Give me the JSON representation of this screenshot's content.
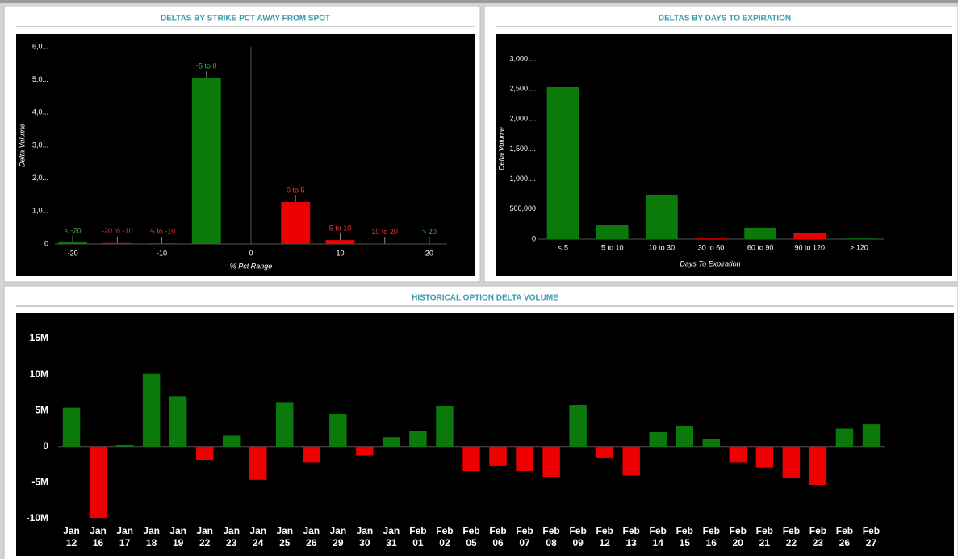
{
  "chart_data": [
    {
      "type": "bar",
      "title": "DELTAS BY STRIKE PCT AWAY FROM SPOT",
      "x_label": "% Pct Range",
      "y_label": "Delta Volume",
      "categories": [
        "< -20",
        "-20 to -10",
        "-5 to -10",
        "-5 to 0",
        "0 to 5",
        "5 to 10",
        "10 to 20",
        "> 20"
      ],
      "x": [
        -20,
        -15,
        -10,
        -5,
        5,
        10,
        15,
        20
      ],
      "values": [
        50000,
        30000,
        20000,
        5060000,
        1280000,
        120000,
        10000,
        5000
      ],
      "colors": [
        "#0b7a0b",
        "#ee0000",
        "#ee0000",
        "#0b7a0b",
        "#ee0000",
        "#ee0000",
        "#ee0000",
        "#0b7a0b"
      ],
      "xlim": [
        -22,
        22
      ],
      "xticks": [
        -20,
        -10,
        0,
        10,
        20
      ],
      "ylim": [
        0,
        6000000
      ],
      "yticks": [
        0,
        {
          "value": 1000000,
          "label": "1,0..."
        },
        {
          "value": 2000000,
          "label": "2,0..."
        },
        {
          "value": 3000000,
          "label": "3,0..."
        },
        {
          "value": 4000000,
          "label": "4,0..."
        },
        {
          "value": 5000000,
          "label": "5,0..."
        },
        {
          "value": 6000000,
          "label": "6,0..."
        }
      ],
      "data_labels": true
    },
    {
      "type": "bar",
      "title": "DELTAS BY DAYS TO EXPIRATION",
      "x_label": "Days To Expiration",
      "y_label": "Delta Volume",
      "categories": [
        "< 5",
        "5 to 10",
        "10 to 30",
        "30 to 60",
        "60 to 90",
        "90 to 120",
        "> 120"
      ],
      "values": [
        2530000,
        240000,
        740000,
        10000,
        190000,
        95000,
        10000
      ],
      "colors": [
        "#0b7a0b",
        "#0b7a0b",
        "#0b7a0b",
        "#ee0000",
        "#0b7a0b",
        "#ee0000",
        "#0b7a0b"
      ],
      "ylim": [
        0,
        3000000
      ],
      "yticks": [
        0,
        {
          "value": 500000,
          "label": "500,000"
        },
        {
          "value": 1000000,
          "label": "1,000,..."
        },
        {
          "value": 1500000,
          "label": "1,500,..."
        },
        {
          "value": 2000000,
          "label": "2,000,..."
        },
        {
          "value": 2500000,
          "label": "2,500,..."
        },
        {
          "value": 3000000,
          "label": "3,000,..."
        }
      ]
    },
    {
      "type": "bar",
      "title": "HISTORICAL OPTION DELTA VOLUME",
      "categories": [
        "Jan 12",
        "Jan 16",
        "Jan 17",
        "Jan 18",
        "Jan 19",
        "Jan 22",
        "Jan 23",
        "Jan 24",
        "Jan 25",
        "Jan 26",
        "Jan 29",
        "Jan 30",
        "Jan 31",
        "Feb 01",
        "Feb 02",
        "Feb 05",
        "Feb 06",
        "Feb 07",
        "Feb 08",
        "Feb 09",
        "Feb 12",
        "Feb 13",
        "Feb 14",
        "Feb 15",
        "Feb 16",
        "Feb 20",
        "Feb 21",
        "Feb 22",
        "Feb 23",
        "Feb 26",
        "Feb 27"
      ],
      "values": [
        5400000,
        -9900000,
        200000,
        10100000,
        7000000,
        -1900000,
        1500000,
        -4600000,
        6100000,
        -2200000,
        4500000,
        -1200000,
        1300000,
        2200000,
        5600000,
        -3400000,
        -2700000,
        -3400000,
        -4200000,
        5800000,
        -1600000,
        -4000000,
        2000000,
        2900000,
        1000000,
        -2200000,
        -2900000,
        -4400000,
        -5400000,
        2500000,
        3100000
      ],
      "colors": [
        "#0b7a0b",
        "#ee0000",
        "#0b7a0b",
        "#0b7a0b",
        "#0b7a0b",
        "#ee0000",
        "#0b7a0b",
        "#ee0000",
        "#0b7a0b",
        "#ee0000",
        "#0b7a0b",
        "#ee0000",
        "#0b7a0b",
        "#0b7a0b",
        "#0b7a0b",
        "#ee0000",
        "#ee0000",
        "#ee0000",
        "#ee0000",
        "#0b7a0b",
        "#ee0000",
        "#ee0000",
        "#0b7a0b",
        "#0b7a0b",
        "#0b7a0b",
        "#ee0000",
        "#ee0000",
        "#ee0000",
        "#ee0000",
        "#0b7a0b",
        "#0b7a0b"
      ],
      "ylim": [
        -10000000,
        15000000
      ],
      "yticks": [
        {
          "value": -10000000,
          "label": "-10M"
        },
        {
          "value": -5000000,
          "label": "-5M"
        },
        0,
        {
          "value": 5000000,
          "label": "5M"
        },
        {
          "value": 10000000,
          "label": "10M"
        },
        {
          "value": 15000000,
          "label": "15M"
        }
      ]
    }
  ]
}
